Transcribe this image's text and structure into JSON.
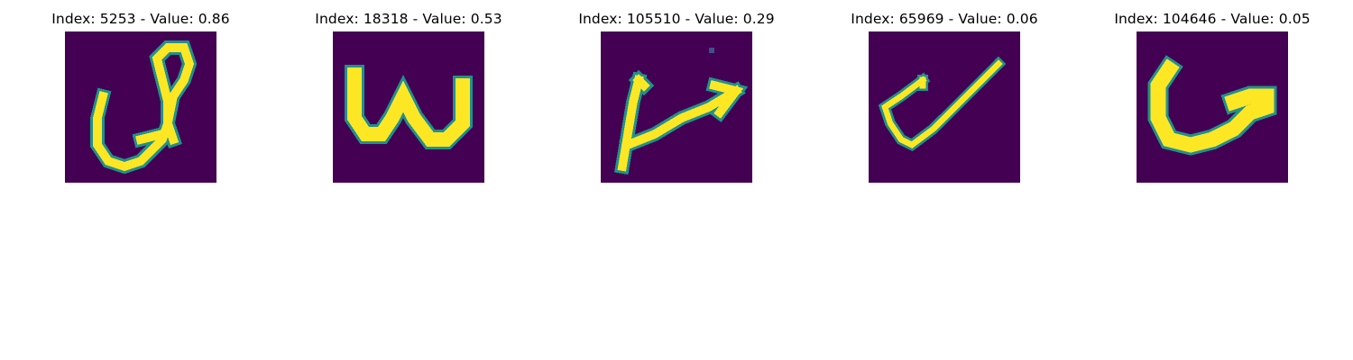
{
  "chart_data": {
    "type": "image-grid",
    "colormap": "viridis",
    "background_color": "#440154",
    "stroke_color": "#fde725",
    "edge_color": "#21918c",
    "panels": [
      {
        "title": "Index: 5253 - Value: 0.86",
        "index": 5253,
        "value": 0.86,
        "glyph": "loop-stroke"
      },
      {
        "title": "Index: 18318 - Value: 0.53",
        "index": 18318,
        "value": 0.53,
        "glyph": "w-stroke"
      },
      {
        "title": "Index: 105510 - Value: 0.29",
        "index": 105510,
        "value": 0.29,
        "glyph": "arrow-stroke"
      },
      {
        "title": "Index: 65969 - Value: 0.06",
        "index": 65969,
        "value": 0.06,
        "glyph": "check-stroke"
      },
      {
        "title": "Index: 104646 - Value: 0.05",
        "index": 104646,
        "value": 0.05,
        "glyph": "u-stroke"
      }
    ]
  }
}
